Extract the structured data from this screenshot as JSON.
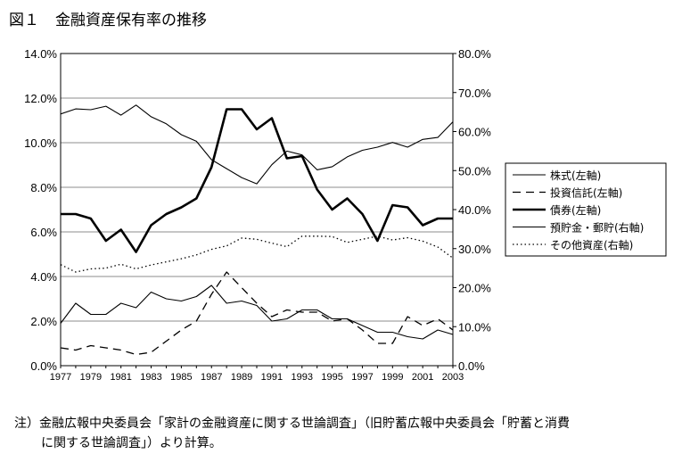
{
  "title": {
    "label": "図１",
    "text": "金融資産保有率の推移"
  },
  "note": {
    "line1": "注）金融広報中央委員会「家計の金融資産に関する世論調査」（旧貯蓄広報中央委員会「貯蓄と消費",
    "line2": "に関する世論調査」）より計算。"
  },
  "chart_data": {
    "type": "line",
    "x": [
      1977,
      1978,
      1979,
      1980,
      1981,
      1982,
      1983,
      1984,
      1985,
      1986,
      1987,
      1988,
      1989,
      1990,
      1991,
      1992,
      1993,
      1994,
      1995,
      1996,
      1997,
      1998,
      1999,
      2000,
      2001,
      2002,
      2003
    ],
    "x_tick_labels": [
      "1977",
      "1979",
      "1981",
      "1983",
      "1985",
      "1987",
      "1989",
      "1991",
      "1993",
      "1995",
      "1997",
      "1999",
      "2001",
      "2003"
    ],
    "y_left": {
      "min": 0,
      "max": 14,
      "ticks": [
        "0.0%",
        "2.0%",
        "4.0%",
        "6.0%",
        "8.0%",
        "10.0%",
        "12.0%",
        "14.0%"
      ]
    },
    "y_right": {
      "min": 0,
      "max": 80,
      "ticks": [
        "0.0%",
        "10.0%",
        "20.0%",
        "30.0%",
        "40.0%",
        "50.0%",
        "60.0%",
        "70.0%",
        "80.0%"
      ]
    },
    "grid": "horizontal",
    "legend_position": "right",
    "series": [
      {
        "name": "株式(左軸)",
        "axis": "left",
        "style": "solid-thin",
        "values": [
          1.9,
          2.8,
          2.3,
          2.3,
          2.8,
          2.6,
          3.3,
          3.0,
          2.9,
          3.1,
          3.6,
          2.8,
          2.9,
          2.7,
          2.0,
          2.1,
          2.5,
          2.5,
          2.1,
          2.1,
          1.8,
          1.5,
          1.5,
          1.3,
          1.2,
          1.6,
          1.4
        ]
      },
      {
        "name": "投資信託(左軸)",
        "axis": "left",
        "style": "dashed",
        "values": [
          0.8,
          0.7,
          0.9,
          0.8,
          0.7,
          0.5,
          0.6,
          1.1,
          1.6,
          2.0,
          3.2,
          4.2,
          3.5,
          2.8,
          2.2,
          2.5,
          2.4,
          2.4,
          2.0,
          2.1,
          1.6,
          1.0,
          1.0,
          2.2,
          1.8,
          2.1,
          1.6
        ]
      },
      {
        "name": "債券(左軸)",
        "axis": "left",
        "style": "solid-thick",
        "values": [
          6.8,
          6.8,
          6.6,
          5.6,
          6.1,
          5.1,
          6.3,
          6.8,
          7.1,
          7.5,
          8.9,
          11.5,
          11.5,
          10.6,
          11.1,
          9.3,
          9.4,
          7.9,
          7.0,
          7.5,
          6.8,
          5.6,
          7.2,
          7.1,
          6.3,
          6.6,
          6.6
        ]
      },
      {
        "name": "預貯金・郵貯(右軸)",
        "axis": "right",
        "style": "solid-thin",
        "values": [
          64.5,
          65.8,
          65.6,
          66.5,
          64.2,
          66.8,
          63.8,
          62.0,
          59.2,
          57.5,
          52.8,
          50.5,
          48.2,
          46.6,
          51.5,
          55.0,
          54.0,
          50.2,
          51.0,
          53.5,
          55.2,
          56.0,
          57.2,
          56.0,
          58.0,
          58.5,
          62.5
        ]
      },
      {
        "name": "その他資産(右軸)",
        "axis": "right",
        "style": "dotted",
        "values": [
          25.9,
          24.0,
          24.8,
          25.0,
          26.0,
          24.8,
          25.8,
          26.6,
          27.4,
          28.4,
          29.8,
          30.7,
          32.7,
          32.4,
          31.4,
          30.5,
          33.2,
          33.2,
          33.1,
          31.6,
          32.4,
          33.2,
          32.2,
          32.8,
          31.9,
          30.4,
          27.6
        ]
      }
    ]
  }
}
